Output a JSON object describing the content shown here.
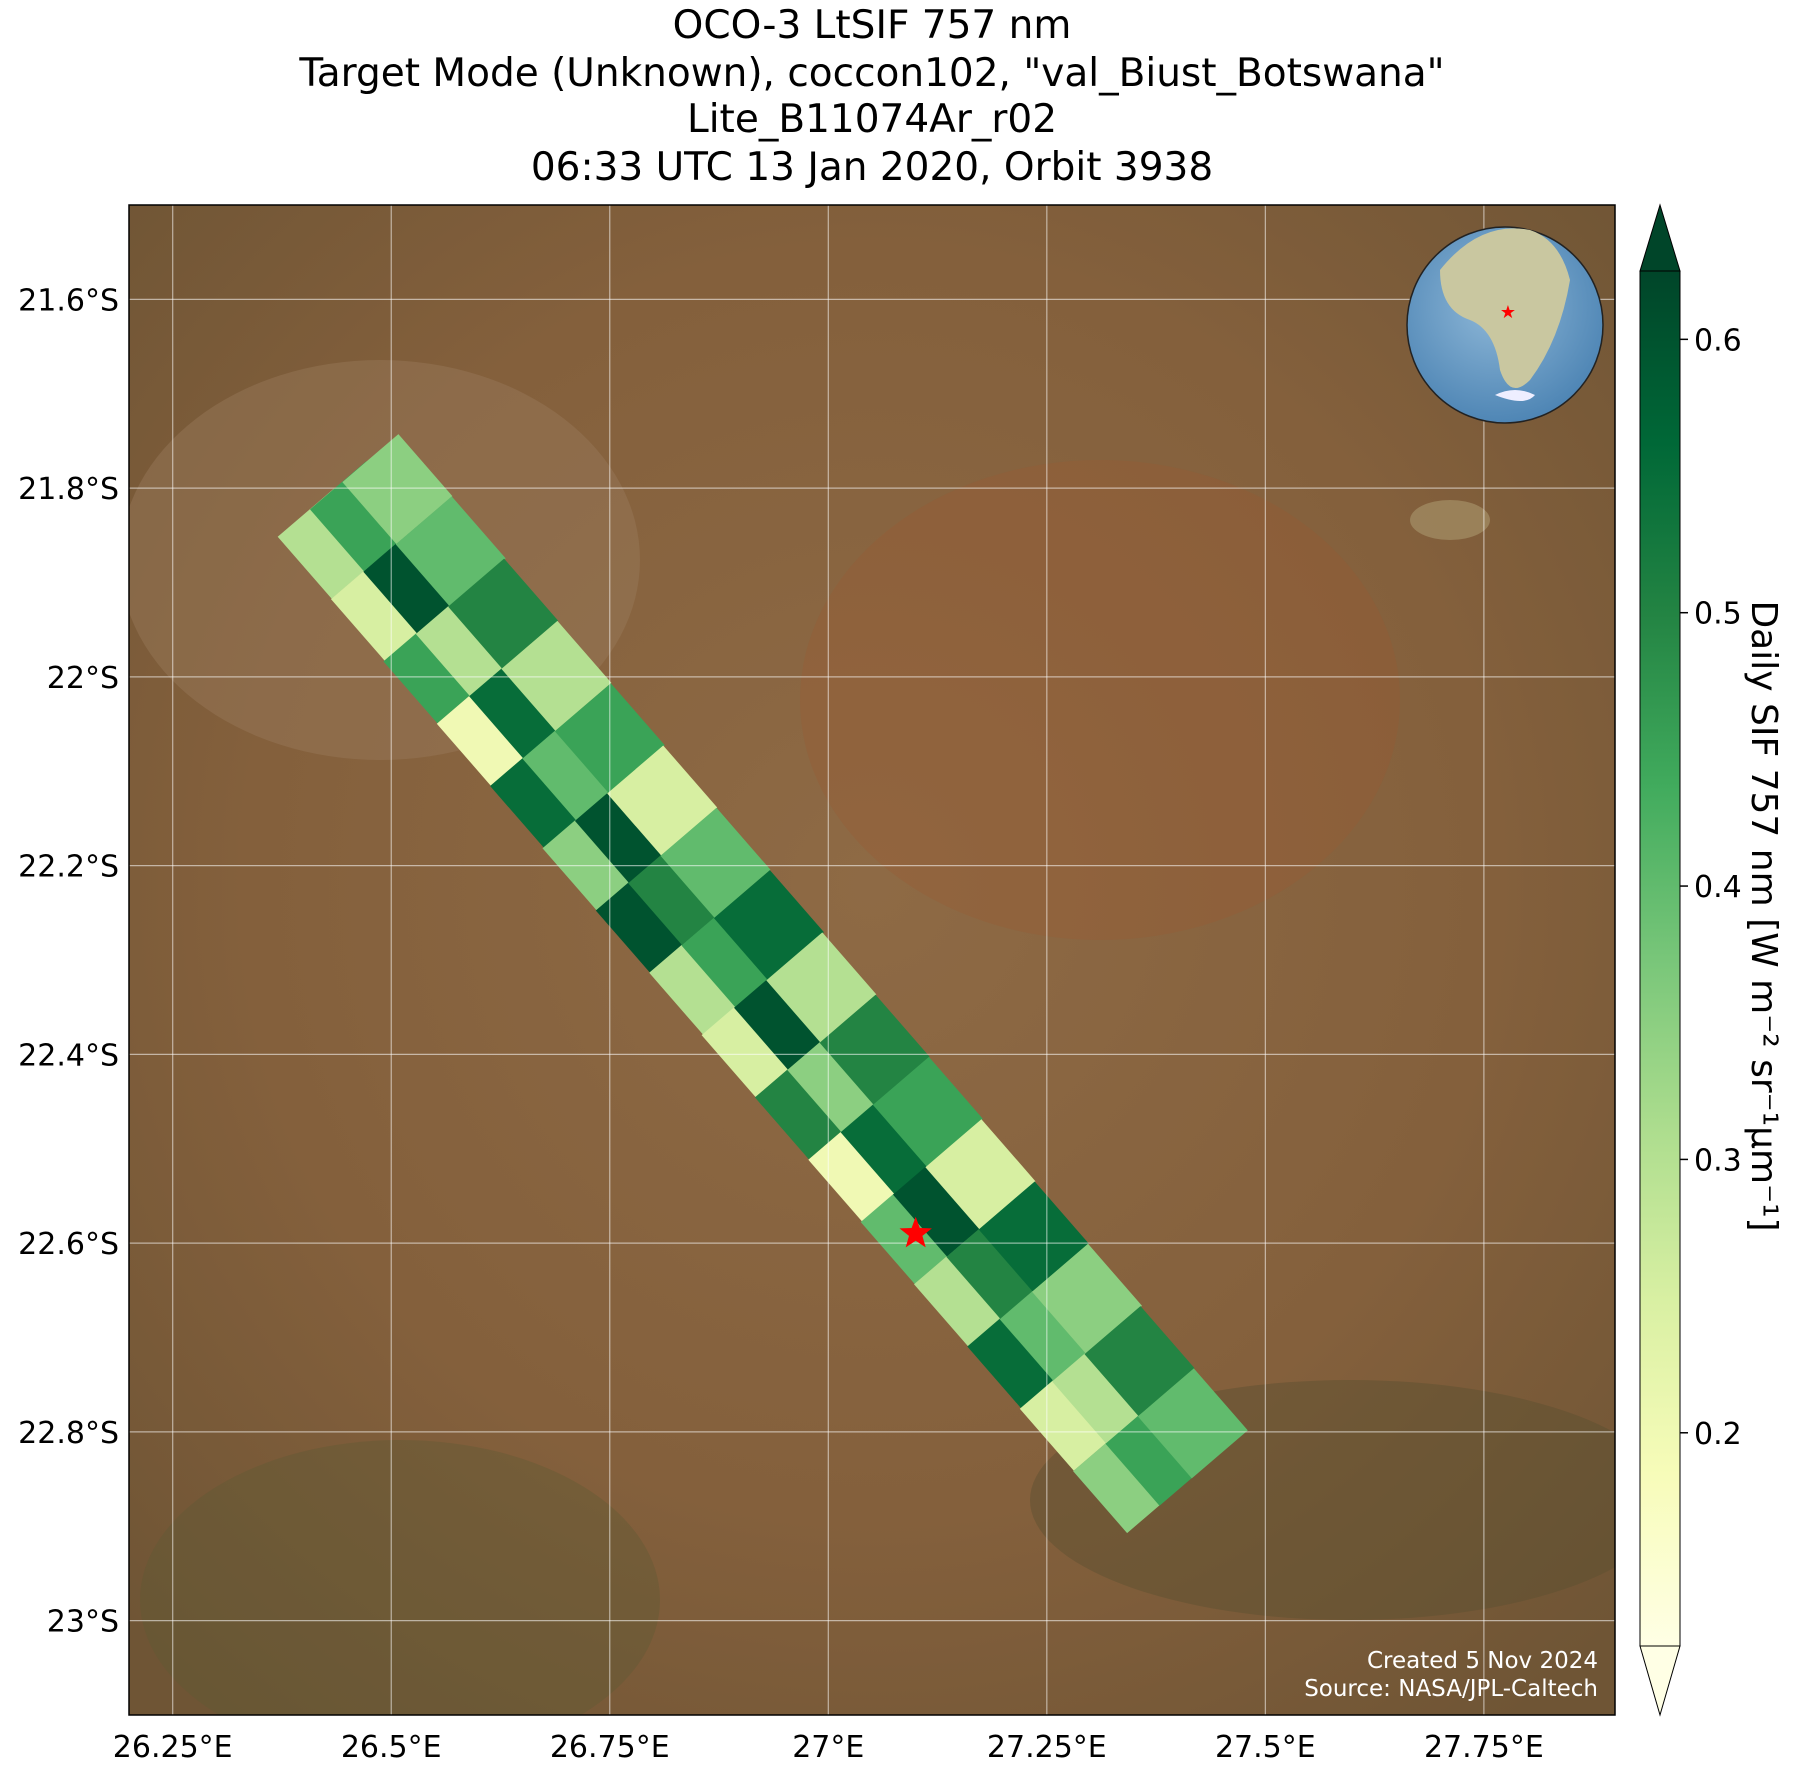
{
  "chart_data": {
    "type": "map",
    "title_lines": [
      "OCO-3 LtSIF 757 nm",
      "Target Mode (Unknown), coccon102, \"val_Biust_Botswana\"",
      "Lite_B11074Ar_r02",
      "06:33 UTC 13 Jan 2020, Orbit 3938"
    ],
    "xlim": [
      26.2,
      27.9
    ],
    "ylim": [
      -23.1,
      -21.5
    ],
    "xticks": [
      {
        "value": 26.25,
        "label": "26.25°E"
      },
      {
        "value": 26.5,
        "label": "26.5°E"
      },
      {
        "value": 26.75,
        "label": "26.75°E"
      },
      {
        "value": 27,
        "label": "27°E"
      },
      {
        "value": 27.25,
        "label": "27.25°E"
      },
      {
        "value": 27.5,
        "label": "27.5°E"
      },
      {
        "value": 27.75,
        "label": "27.75°E"
      }
    ],
    "yticks": [
      {
        "value": -21.6,
        "label": "21.6°S"
      },
      {
        "value": -21.8,
        "label": "21.8°S"
      },
      {
        "value": -22,
        "label": "22°S"
      },
      {
        "value": -22.2,
        "label": "22.2°S"
      },
      {
        "value": -22.4,
        "label": "22.4°S"
      },
      {
        "value": -22.6,
        "label": "22.6°S"
      },
      {
        "value": -22.8,
        "label": "22.8°S"
      },
      {
        "value": -23,
        "label": "23°S"
      }
    ],
    "grid": true,
    "colorbar": {
      "label": "Daily SIF 757 nm [W m⁻² sr⁻¹µm⁻¹]",
      "lim": [
        0.122,
        0.625
      ],
      "ticks": [
        0.2,
        0.3,
        0.4,
        0.5,
        0.6
      ],
      "colormap": [
        "#ffffe5",
        "#f7fcb9",
        "#d9f0a3",
        "#addd8e",
        "#78c679",
        "#41ab5d",
        "#238443",
        "#006837",
        "#004529"
      ]
    },
    "swath": {
      "lon": [
        26.433,
        26.494,
        26.554,
        26.615,
        26.676,
        26.736,
        26.797,
        26.858,
        26.918,
        26.979,
        27.04,
        27.1,
        27.161,
        27.222,
        27.282,
        27.343,
        26.47,
        26.531,
        26.591,
        26.652,
        26.713,
        26.773,
        26.834,
        26.895,
        26.955,
        27.016,
        27.077,
        27.137,
        27.198,
        27.259,
        27.319,
        27.38,
        26.507,
        26.568,
        26.628,
        26.689,
        26.75,
        26.81,
        26.871,
        26.932,
        26.992,
        27.053,
        27.114,
        27.174,
        27.235,
        27.296,
        27.356,
        27.417
      ],
      "lat": [
        -21.859,
        -21.925,
        -21.991,
        -22.057,
        -22.123,
        -22.189,
        -22.255,
        -22.321,
        -22.387,
        -22.453,
        -22.519,
        -22.585,
        -22.651,
        -22.717,
        -22.783,
        -22.849,
        -21.83,
        -21.896,
        -21.962,
        -22.028,
        -22.094,
        -22.16,
        -22.226,
        -22.292,
        -22.358,
        -22.424,
        -22.49,
        -22.556,
        -22.622,
        -22.688,
        -22.754,
        -22.82,
        -21.801,
        -21.867,
        -21.933,
        -21.999,
        -22.065,
        -22.131,
        -22.197,
        -22.263,
        -22.329,
        -22.395,
        -22.461,
        -22.527,
        -22.593,
        -22.659,
        -22.725,
        -22.791
      ],
      "values": [
        0.3,
        0.25,
        0.45,
        0.2,
        0.55,
        0.35,
        0.6,
        0.3,
        0.25,
        0.5,
        0.2,
        0.4,
        0.3,
        0.55,
        0.25,
        0.35,
        0.45,
        0.6,
        0.3,
        0.55,
        0.4,
        0.6,
        0.5,
        0.45,
        0.6,
        0.35,
        0.55,
        0.6,
        0.5,
        0.4,
        0.3,
        0.45,
        0.35,
        0.4,
        0.5,
        0.3,
        0.45,
        0.25,
        0.4,
        0.55,
        0.3,
        0.5,
        0.45,
        0.25,
        0.55,
        0.35,
        0.5,
        0.4
      ]
    },
    "target": {
      "lon": 27.1,
      "lat": -22.59
    },
    "annotations": [
      "Created 5 Nov 2024",
      "Source: NASA/JPL-Caltech"
    ]
  }
}
